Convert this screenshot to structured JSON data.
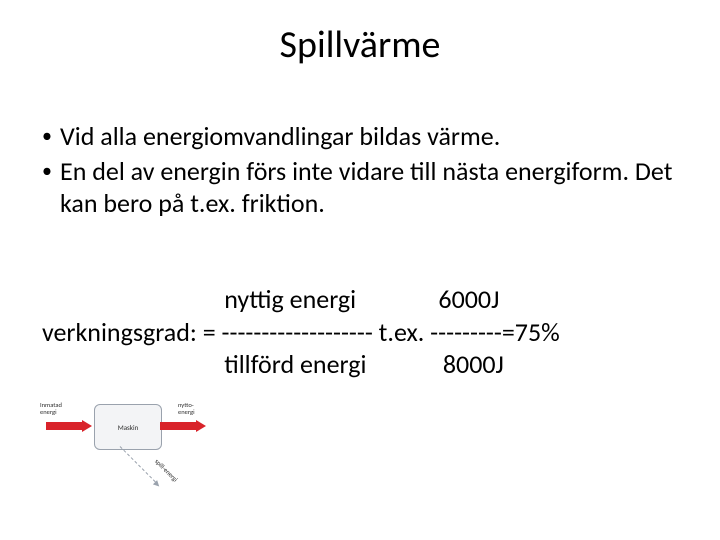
{
  "title": "Spillvärme",
  "bullets": [
    "Vid alla energiomvandlingar bildas värme.",
    "En del av energin förs inte vidare till nästa energiform. Det kan bero på t.ex. friktion."
  ],
  "formula": {
    "row1": "                               nyttig energi              6000J",
    "row2": "verkningsgrad: = ------------------- t.ex. ---------=75%",
    "row3": "                               tillförd energi             8000J"
  },
  "diagram": {
    "box_label": "Maskin",
    "in_label": "Inmatad energi",
    "out_label": "nytto-energi",
    "spill_label": "spill-energi",
    "arrow_color": "#d9232a",
    "box_border": "#9aa2ad",
    "box_fill": "#f3f4f6"
  }
}
